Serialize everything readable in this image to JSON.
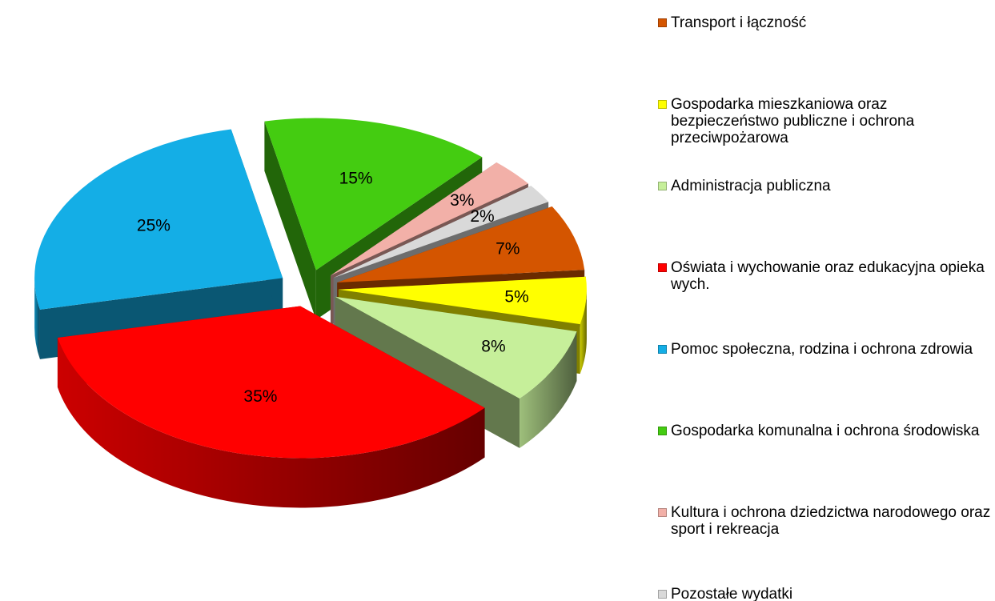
{
  "chart_data": {
    "type": "pie",
    "three_d": true,
    "exploded": true,
    "legend": "right",
    "categories": [
      "Transport i łączność",
      "Gospodarka mieszkaniowa oraz bezpieczeństwo publiczne i ochrona przeciwpożarowa",
      "Administracja publiczna",
      "Oświata i wychowanie oraz edukacyjna opieka wych.",
      "Pomoc społeczna, rodzina i ochrona zdrowia",
      "Gospodarka komunalna i ochrona środowiska",
      "Kultura i ochrona dziedzictwa narodowego oraz sport i rekreacja",
      "Pozostałe wydatki"
    ],
    "values": [
      7,
      5,
      8,
      35,
      25,
      15,
      3,
      2
    ],
    "value_labels": [
      "7%",
      "5%",
      "8%",
      "35%",
      "25%",
      "15%",
      "3%",
      "2%"
    ],
    "colors": [
      "#d45500",
      "#ffff00",
      "#c6ef9a",
      "#ff0000",
      "#14aee6",
      "#44cc11",
      "#f2b0a8",
      "#d9d9d9"
    ]
  }
}
